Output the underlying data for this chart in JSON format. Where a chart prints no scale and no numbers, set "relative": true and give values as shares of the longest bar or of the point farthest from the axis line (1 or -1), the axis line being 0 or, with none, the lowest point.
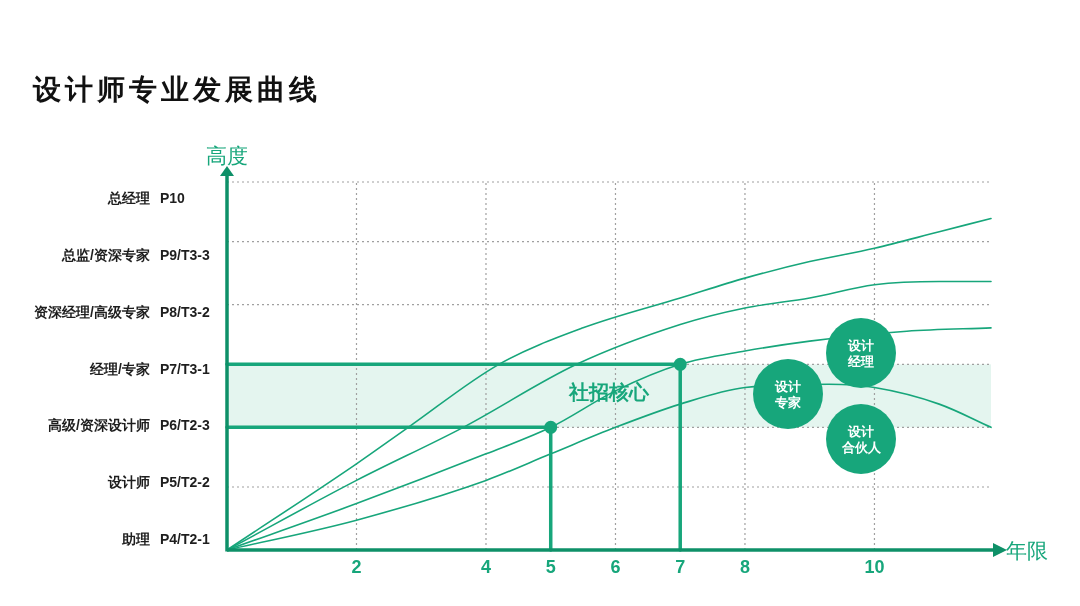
{
  "chart_data": {
    "type": "line",
    "relative": true,
    "title": "设计师专业发展曲线",
    "xlabel": "年限",
    "ylabel": "高度",
    "xlim": [
      0,
      11.8
    ],
    "xticks": [
      2,
      4,
      5,
      6,
      7,
      8,
      10
    ],
    "y_categories": [
      "总经理 P10",
      "总监/资深专家 P9/T3-3",
      "资深经理/高级专家 P8/T3-2",
      "经理/专家 P7/T3-1",
      "高级/资深设计师 P6/T2-3",
      "设计师 P5/T2-2",
      "助理 P4/T2-1"
    ],
    "series": [
      {
        "color": "#17a67b",
        "x": [
          0,
          2,
          2.8,
          4.2,
          5.5,
          7,
          8,
          9,
          10,
          11,
          11.8
        ],
        "values": [
          0,
          0.26,
          0.37,
          0.56,
          0.67,
          0.76,
          0.82,
          0.87,
          0.91,
          0.96,
          1
        ]
      },
      {
        "color": "#17a67b",
        "x": [
          0,
          2,
          3.65,
          5.4,
          7,
          8,
          9,
          10,
          11,
          11.8
        ],
        "values": [
          0,
          0.21,
          0.37,
          0.56,
          0.68,
          0.73,
          0.76,
          0.8,
          0.81,
          0.81
        ]
      },
      {
        "color": "#17a67b",
        "x": [
          0,
          2,
          4,
          5,
          6,
          7,
          8,
          9,
          10.5,
          11.8
        ],
        "values": [
          0,
          0.14,
          0.29,
          0.37,
          0.48,
          0.56,
          0.6,
          0.63,
          0.66,
          0.67
        ]
      },
      {
        "color": "#17a67b",
        "x": [
          0,
          2,
          4,
          5,
          6,
          7,
          8,
          9.3,
          10,
          11,
          11.8
        ],
        "values": [
          0,
          0.09,
          0.21,
          0.29,
          0.37,
          0.44,
          0.49,
          0.5,
          0.49,
          0.44,
          0.37
        ]
      },
      {
        "color": "#17a67b",
        "x": [
          0,
          5,
          5
        ],
        "values": [
          0.37,
          0.37,
          0
        ]
      },
      {
        "color": "#17a67b",
        "x": [
          0,
          7,
          7
        ],
        "values": [
          0.56,
          0.56,
          0
        ]
      },
      {
        "type": "scatter",
        "marker": "circle",
        "color": "#17a67b",
        "x": [
          5,
          7
        ],
        "values": [
          0.37,
          0.56
        ]
      }
    ],
    "bands": [
      {
        "axis": "y",
        "from": 0.37,
        "to": 0.56,
        "label": "社招核心",
        "color": "#e4f5ef"
      }
    ],
    "ref_lines": [
      {
        "axis": "y",
        "value": 0.19,
        "color": "#a0a0a0",
        "line_style": "dotted"
      },
      {
        "axis": "y",
        "value": 0.37,
        "color": "#a0a0a0",
        "line_style": "dotted"
      },
      {
        "axis": "y",
        "value": 0.56,
        "color": "#a0a0a0",
        "line_style": "dotted"
      },
      {
        "axis": "y",
        "value": 0.74,
        "color": "#a0a0a0",
        "line_style": "dotted"
      },
      {
        "axis": "y",
        "value": 0.93,
        "color": "#a0a0a0",
        "line_style": "dotted"
      },
      {
        "axis": "y",
        "value": 1.11,
        "color": "#a0a0a0",
        "line_style": "dotted"
      },
      {
        "axis": "x",
        "value": 2,
        "color": "#a0a0a0",
        "line_style": "dotted"
      },
      {
        "axis": "x",
        "value": 4,
        "color": "#a0a0a0",
        "line_style": "dotted"
      },
      {
        "axis": "x",
        "value": 6,
        "color": "#a0a0a0",
        "line_style": "dotted"
      },
      {
        "axis": "x",
        "value": 8,
        "color": "#a0a0a0",
        "line_style": "dotted"
      },
      {
        "axis": "x",
        "value": 10,
        "color": "#a0a0a0",
        "line_style": "dotted"
      }
    ],
    "annotations": [
      "设计专家",
      "设计经理",
      "设计合伙人"
    ],
    "marker": "none",
    "line_style": "solid"
  }
}
